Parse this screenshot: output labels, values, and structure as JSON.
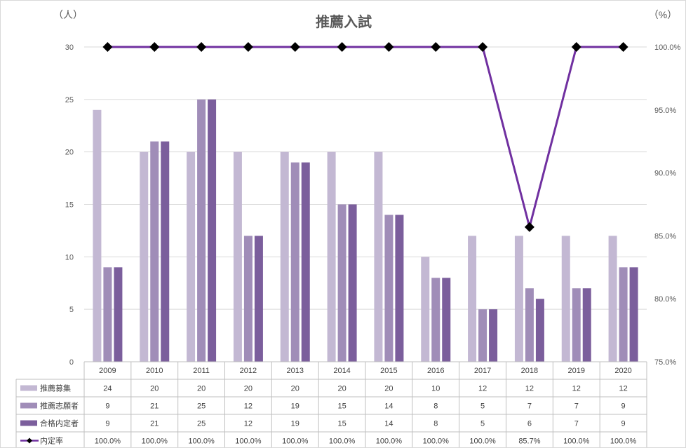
{
  "chart_data": {
    "type": "bar",
    "title": "推薦入試",
    "y_left_unit": "（人）",
    "y_right_unit": "（%）",
    "categories": [
      "2009",
      "2010",
      "2011",
      "2012",
      "2013",
      "2014",
      "2015",
      "2016",
      "2017",
      "2018",
      "2019",
      "2020"
    ],
    "ylim_left": [
      0,
      30
    ],
    "yticks_left": [
      "0",
      "5",
      "10",
      "15",
      "20",
      "25",
      "30"
    ],
    "ylim_right": [
      75,
      100
    ],
    "yticks_right": [
      "75.0%",
      "80.0%",
      "85.0%",
      "90.0%",
      "95.0%",
      "100.0%"
    ],
    "grid": true,
    "legend": "data-table",
    "series": [
      {
        "name": "推薦募集",
        "kind": "bar",
        "color": "#c3b8d3",
        "values": [
          24,
          20,
          20,
          20,
          20,
          20,
          20,
          10,
          12,
          12,
          12,
          12
        ],
        "labels": [
          "24",
          "20",
          "20",
          "20",
          "20",
          "20",
          "20",
          "10",
          "12",
          "12",
          "12",
          "12"
        ]
      },
      {
        "name": "推薦志願者",
        "kind": "bar",
        "color": "#a08db8",
        "values": [
          9,
          21,
          25,
          12,
          19,
          15,
          14,
          8,
          5,
          7,
          7,
          9
        ],
        "labels": [
          "9",
          "21",
          "25",
          "12",
          "19",
          "15",
          "14",
          "8",
          "5",
          "7",
          "7",
          "9"
        ]
      },
      {
        "name": "合格内定者",
        "kind": "bar",
        "color": "#7b5e9c",
        "values": [
          9,
          21,
          25,
          12,
          19,
          15,
          14,
          8,
          5,
          6,
          7,
          9
        ],
        "labels": [
          "9",
          "21",
          "25",
          "12",
          "19",
          "15",
          "14",
          "8",
          "5",
          "6",
          "7",
          "9"
        ]
      },
      {
        "name": "内定率",
        "kind": "line",
        "color": "#7030a0",
        "marker_color": "#000000",
        "values": [
          100,
          100,
          100,
          100,
          100,
          100,
          100,
          100,
          100,
          85.7,
          100,
          100
        ],
        "labels": [
          "100.0%",
          "100.0%",
          "100.0%",
          "100.0%",
          "100.0%",
          "100.0%",
          "100.0%",
          "100.0%",
          "100.0%",
          "85.7%",
          "100.0%",
          "100.0%"
        ]
      }
    ]
  }
}
